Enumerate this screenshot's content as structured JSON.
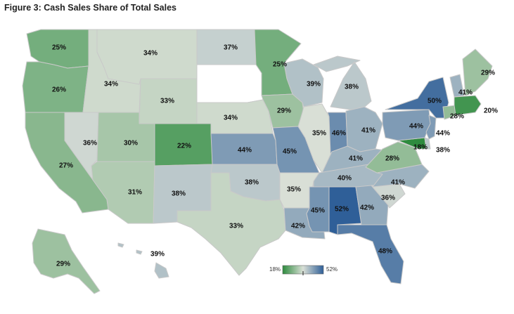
{
  "title": "Figure 3: Cash Sales Share of Total Sales",
  "legend": {
    "min_label": "18%",
    "max_label": "52%",
    "min_value": 18,
    "max_value": 52
  },
  "colors": {
    "low": "#2e8b3e",
    "mid": "#d9dfd6",
    "high": "#2f5f98"
  },
  "states": [
    {
      "id": "WA",
      "label": "25%",
      "value": 25
    },
    {
      "id": "OR",
      "label": "26%",
      "value": 26
    },
    {
      "id": "CA",
      "label": "27%",
      "value": 27
    },
    {
      "id": "NV",
      "label": "36%",
      "value": 36
    },
    {
      "id": "ID",
      "label": "34%",
      "value": 34
    },
    {
      "id": "MT",
      "label": "34%",
      "value": 34
    },
    {
      "id": "WY",
      "label": "33%",
      "value": 33
    },
    {
      "id": "UT",
      "label": "30%",
      "value": 30
    },
    {
      "id": "AZ",
      "label": "31%",
      "value": 31
    },
    {
      "id": "CO",
      "label": "22%",
      "value": 22
    },
    {
      "id": "NM",
      "label": "38%",
      "value": 38
    },
    {
      "id": "ND",
      "label": "37%",
      "value": 37
    },
    {
      "id": "NE",
      "label": "34%",
      "value": 34
    },
    {
      "id": "KS",
      "label": "44%",
      "value": 44
    },
    {
      "id": "OK",
      "label": "38%",
      "value": 38
    },
    {
      "id": "TX",
      "label": "33%",
      "value": 33
    },
    {
      "id": "MN",
      "label": "25%",
      "value": 25
    },
    {
      "id": "IA",
      "label": "29%",
      "value": 29
    },
    {
      "id": "MO",
      "label": "45%",
      "value": 45
    },
    {
      "id": "AR",
      "label": "35%",
      "value": 35
    },
    {
      "id": "LA",
      "label": "42%",
      "value": 42
    },
    {
      "id": "WI",
      "label": "39%",
      "value": 39
    },
    {
      "id": "IL",
      "label": "35%",
      "value": 35
    },
    {
      "id": "MI",
      "label": "38%",
      "value": 38
    },
    {
      "id": "IN",
      "label": "46%",
      "value": 46
    },
    {
      "id": "OH",
      "label": "41%",
      "value": 41
    },
    {
      "id": "KY",
      "label": "41%",
      "value": 41
    },
    {
      "id": "TN",
      "label": "40%",
      "value": 40
    },
    {
      "id": "MS",
      "label": "45%",
      "value": 45
    },
    {
      "id": "AL",
      "label": "52%",
      "value": 52
    },
    {
      "id": "GA",
      "label": "42%",
      "value": 42
    },
    {
      "id": "FL",
      "label": "48%",
      "value": 48
    },
    {
      "id": "SC",
      "label": "36%",
      "value": 36
    },
    {
      "id": "NC",
      "label": "41%",
      "value": 41
    },
    {
      "id": "VA",
      "label": "28%",
      "value": 28
    },
    {
      "id": "MD",
      "label": "18%",
      "value": 18
    },
    {
      "id": "DE",
      "label": "38%",
      "value": 38
    },
    {
      "id": "PA",
      "label": "44%",
      "value": 44
    },
    {
      "id": "NJ",
      "label": "44%",
      "value": 44
    },
    {
      "id": "NY",
      "label": "50%",
      "value": 50
    },
    {
      "id": "CT",
      "label": "28%",
      "value": 28
    },
    {
      "id": "MA",
      "label": "20%",
      "value": 20
    },
    {
      "id": "VT",
      "label": "41%",
      "value": 41
    },
    {
      "id": "ME",
      "label": "29%",
      "value": 29
    },
    {
      "id": "HI",
      "label": "39%",
      "value": 39
    },
    {
      "id": "AK",
      "label": "29%",
      "value": 29
    }
  ],
  "no_data_states": [
    "SD"
  ]
}
